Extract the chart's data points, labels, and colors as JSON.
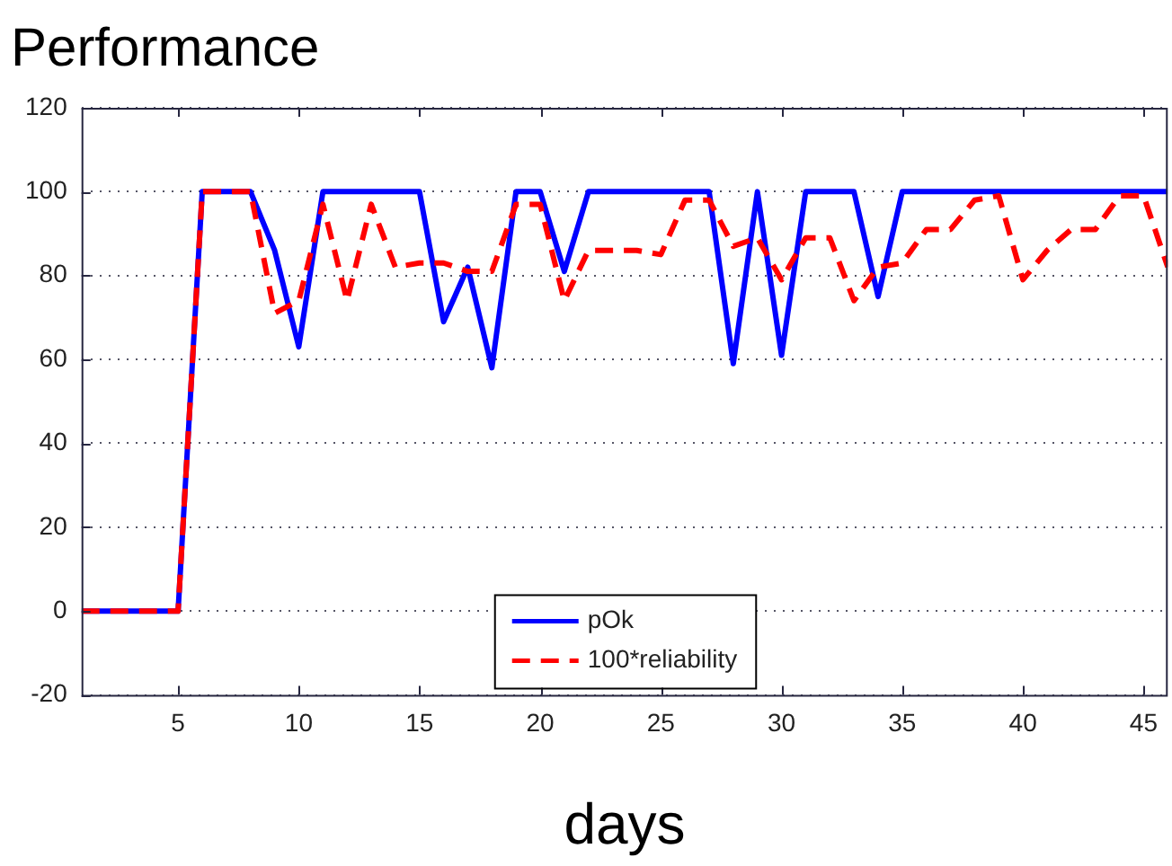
{
  "chart_data": {
    "type": "line",
    "title": "Performance",
    "xlabel": "days",
    "x": [
      1,
      2,
      3,
      4,
      5,
      6,
      7,
      8,
      9,
      10,
      11,
      12,
      13,
      14,
      15,
      16,
      17,
      18,
      19,
      20,
      21,
      22,
      23,
      24,
      25,
      26,
      27,
      28,
      29,
      30,
      31,
      32,
      33,
      34,
      35,
      36,
      37,
      38,
      39,
      40,
      41,
      42,
      43,
      44,
      45,
      46
    ],
    "series": [
      {
        "name": "pOk",
        "color": "#0000ff",
        "line_style": "solid",
        "values": [
          0,
          0,
          0,
          0,
          0,
          100,
          100,
          100,
          86,
          63,
          100,
          100,
          100,
          100,
          100,
          69,
          82,
          58,
          100,
          100,
          81,
          100,
          100,
          100,
          100,
          100,
          100,
          59,
          100,
          61,
          100,
          100,
          100,
          75,
          100,
          100,
          100,
          100,
          100,
          100,
          100,
          100,
          100,
          100,
          100,
          100
        ]
      },
      {
        "name": "100*reliability",
        "color": "#ff0000",
        "line_style": "dashed",
        "values": [
          0,
          0,
          0,
          0,
          0,
          100,
          100,
          100,
          71,
          74,
          97,
          74,
          97,
          82,
          83,
          83,
          81,
          81,
          97,
          97,
          74,
          86,
          86,
          86,
          85,
          98,
          98,
          87,
          89,
          79,
          89,
          89,
          74,
          82,
          83,
          91,
          91,
          98,
          99,
          79,
          86,
          91,
          91,
          99,
          99,
          82
        ]
      }
    ],
    "xlim": [
      1,
      46
    ],
    "ylim": [
      -20,
      120
    ],
    "xticks": [
      5,
      10,
      15,
      20,
      25,
      30,
      35,
      40,
      45
    ],
    "yticks": [
      -20,
      0,
      20,
      40,
      60,
      80,
      100,
      120
    ],
    "grid": "y",
    "legend": "bottom",
    "marker": "none"
  }
}
